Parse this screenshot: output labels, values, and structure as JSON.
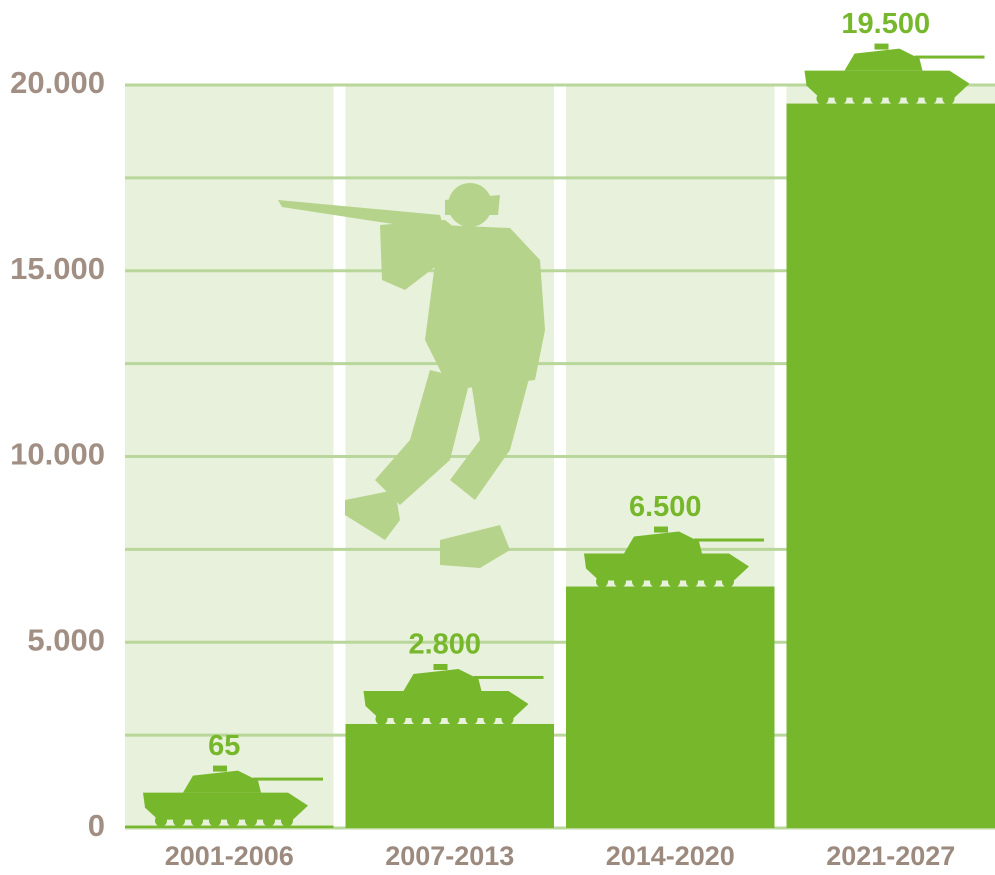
{
  "chart_data": {
    "type": "bar",
    "categories": [
      "2001-2006",
      "2007-2013",
      "2014-2020",
      "2021-2027"
    ],
    "values": [
      65,
      2800,
      6500,
      19500
    ],
    "value_labels": [
      "65",
      "2.800",
      "6.500",
      "19.500"
    ],
    "color": "#77b72c",
    "ylim": [
      0,
      20000
    ],
    "yticks": [
      0,
      {
        "value": 5000,
        "label": "5.000"
      },
      {
        "value": 10000,
        "label": "10.000"
      },
      {
        "value": 15000,
        "label": "15.000"
      },
      {
        "value": 20000,
        "label": "20.000"
      }
    ],
    "minor_yticks": [
      2500,
      7500,
      12500,
      17500
    ],
    "grid": true
  }
}
